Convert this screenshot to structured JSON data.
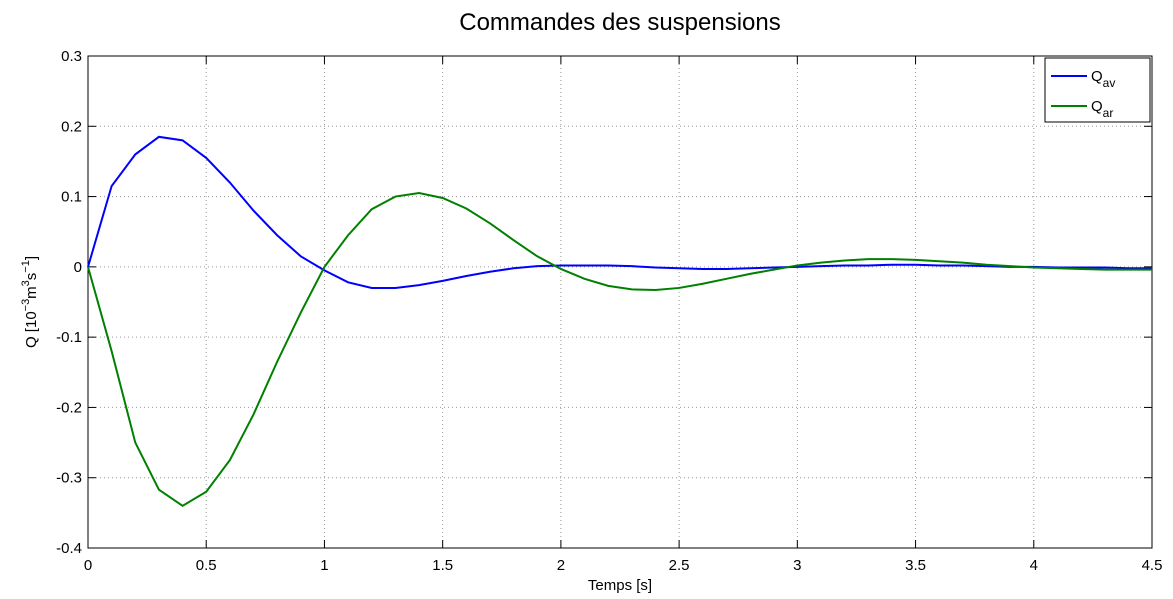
{
  "chart_data": {
    "type": "line",
    "title": "Commandes des suspensions",
    "xlabel": "Temps [s]",
    "ylabel": [
      "Q [10",
      "−3",
      "m",
      "3",
      "s",
      "−1",
      "]"
    ],
    "x": [
      0,
      0.1,
      0.2,
      0.3,
      0.4,
      0.5,
      0.6,
      0.7,
      0.8,
      0.9,
      1.0,
      1.1,
      1.2,
      1.3,
      1.4,
      1.5,
      1.6,
      1.7,
      1.8,
      1.9,
      2.0,
      2.1,
      2.2,
      2.3,
      2.4,
      2.5,
      2.6,
      2.7,
      2.8,
      2.9,
      3.0,
      3.1,
      3.2,
      3.3,
      3.4,
      3.5,
      3.6,
      3.7,
      3.8,
      3.9,
      4.0,
      4.1,
      4.2,
      4.3,
      4.4,
      4.5
    ],
    "series": [
      {
        "name": [
          "Q",
          "av"
        ],
        "color": "#0000ff",
        "values": [
          0,
          0.115,
          0.16,
          0.185,
          0.18,
          0.155,
          0.12,
          0.08,
          0.045,
          0.015,
          -0.005,
          -0.022,
          -0.03,
          -0.03,
          -0.026,
          -0.02,
          -0.013,
          -0.007,
          -0.002,
          0.001,
          0.002,
          0.002,
          0.002,
          0.001,
          -0.001,
          -0.002,
          -0.003,
          -0.003,
          -0.002,
          -0.001,
          0,
          0.001,
          0.002,
          0.002,
          0.003,
          0.003,
          0.002,
          0.002,
          0.001,
          0,
          0,
          -0.001,
          -0.001,
          -0.001,
          -0.002,
          -0.002
        ]
      },
      {
        "name": [
          "Q",
          "ar"
        ],
        "color": "#008000",
        "values": [
          0,
          -0.12,
          -0.25,
          -0.317,
          -0.34,
          -0.32,
          -0.275,
          -0.21,
          -0.135,
          -0.065,
          0,
          0.045,
          0.082,
          0.1,
          0.105,
          0.098,
          0.083,
          0.062,
          0.038,
          0.015,
          -0.003,
          -0.017,
          -0.027,
          -0.032,
          -0.033,
          -0.03,
          -0.024,
          -0.017,
          -0.01,
          -0.004,
          0.002,
          0.006,
          0.009,
          0.011,
          0.011,
          0.01,
          0.008,
          0.006,
          0.003,
          0.001,
          -0.001,
          -0.002,
          -0.003,
          -0.004,
          -0.004,
          -0.004
        ]
      }
    ],
    "xlim": [
      0,
      4.5
    ],
    "xticks": [
      0,
      0.5,
      1,
      1.5,
      2,
      2.5,
      3,
      3.5,
      4,
      4.5
    ],
    "ylim": [
      -0.4,
      0.3
    ],
    "yticks": [
      -0.4,
      -0.3,
      -0.2,
      -0.1,
      0,
      0.1,
      0.2,
      0.3
    ],
    "grid": true,
    "legend": "upper right"
  }
}
